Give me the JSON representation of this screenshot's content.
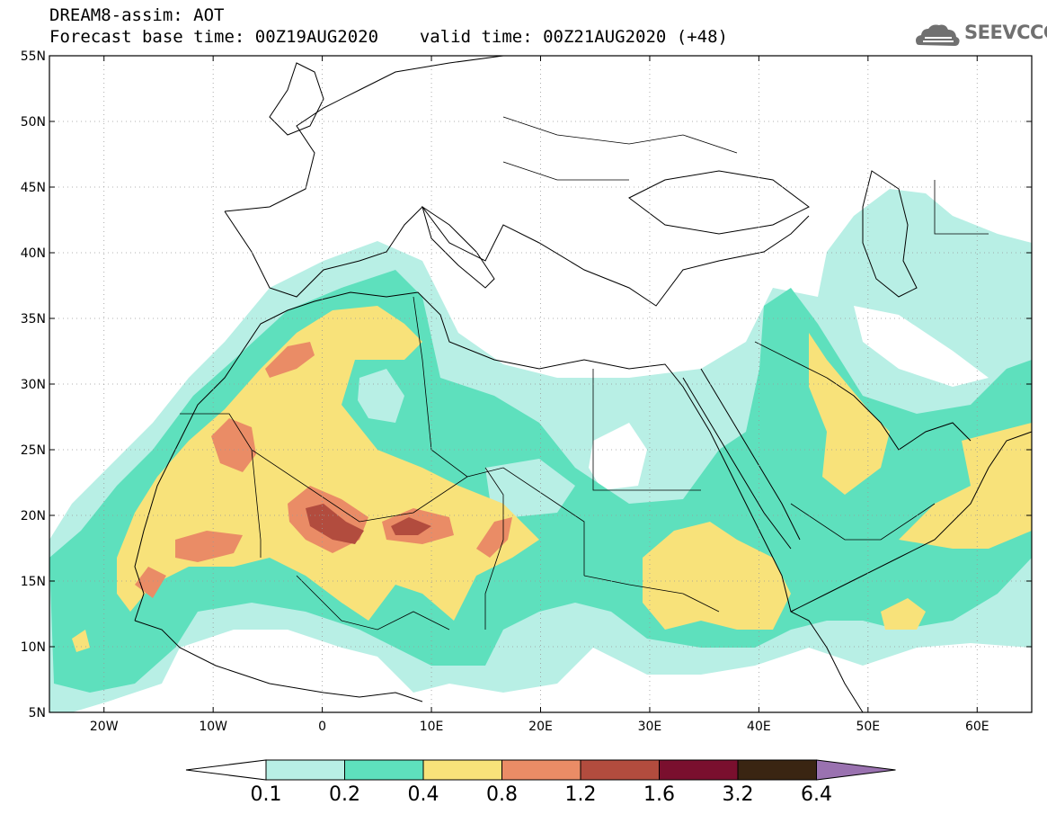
{
  "title": {
    "line1": "DREAM8-assim: AOT",
    "base_time_label": "Forecast base time: 00Z19AUG2020",
    "valid_time_label": "valid time: 00Z21AUG2020 (+48)"
  },
  "logo": {
    "text": "SEEVCCC",
    "icon": "cloud-logo-icon"
  },
  "map": {
    "lon_range": [
      -25,
      65
    ],
    "lat_range": [
      5,
      55
    ],
    "lat_ticks": [
      {
        "value": 55,
        "label": "55N"
      },
      {
        "value": 50,
        "label": "50N"
      },
      {
        "value": 45,
        "label": "45N"
      },
      {
        "value": 40,
        "label": "40N"
      },
      {
        "value": 35,
        "label": "35N"
      },
      {
        "value": 30,
        "label": "30N"
      },
      {
        "value": 25,
        "label": "25N"
      },
      {
        "value": 20,
        "label": "20N"
      },
      {
        "value": 15,
        "label": "15N"
      },
      {
        "value": 10,
        "label": "10N"
      },
      {
        "value": 5,
        "label": "5N"
      }
    ],
    "lon_ticks": [
      {
        "value": -20,
        "label": "20W"
      },
      {
        "value": -10,
        "label": "10W"
      },
      {
        "value": 0,
        "label": "0"
      },
      {
        "value": 10,
        "label": "10E"
      },
      {
        "value": 20,
        "label": "20E"
      },
      {
        "value": 30,
        "label": "30E"
      },
      {
        "value": 40,
        "label": "40E"
      },
      {
        "value": 50,
        "label": "50E"
      },
      {
        "value": 60,
        "label": "60E"
      }
    ],
    "grid": true
  },
  "colorbar": {
    "labels": [
      "0.1",
      "0.2",
      "0.4",
      "0.8",
      "1.2",
      "1.6",
      "3.2",
      "6.4"
    ],
    "colors": [
      "#b8efe5",
      "#5ee0bd",
      "#f8e27a",
      "#ea8c66",
      "#b24c3e",
      "#7a0f2e",
      "#3a2512",
      "#9a72b0"
    ]
  }
}
